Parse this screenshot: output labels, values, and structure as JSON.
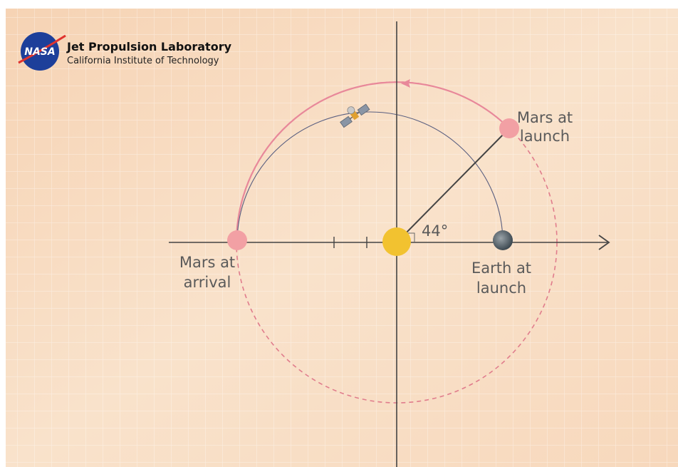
{
  "header": {
    "logo": "NASA",
    "title": "Jet Propulsion Laboratory",
    "subtitle": "California Institute of Technology"
  },
  "labels": {
    "mars_launch": [
      "Mars at",
      "launch"
    ],
    "mars_arrival": [
      "Mars at",
      "arrival"
    ],
    "earth_launch": [
      "Earth at",
      "launch"
    ],
    "angle": "44°"
  }
}
